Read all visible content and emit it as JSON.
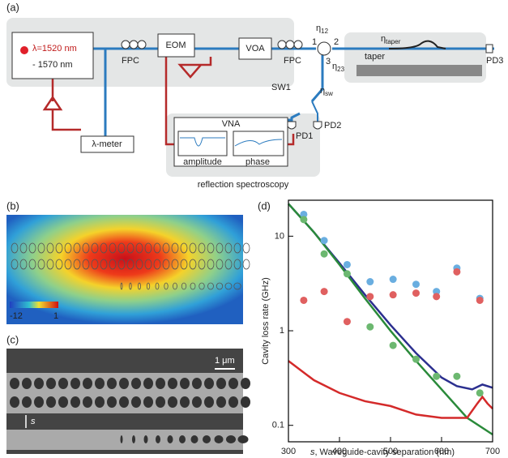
{
  "panels": {
    "a": {
      "label": "(a)",
      "laser": [
        "λ=1520 nm",
        "- 1570 nm"
      ],
      "fpc1": "FPC",
      "eom": "EOM",
      "voa": "VOA",
      "fpc2": "FPC",
      "ports": [
        "1",
        "2",
        "3"
      ],
      "eta12": {
        "symbol": "η",
        "sub": "12"
      },
      "eta23": {
        "symbol": "η",
        "sub": "23"
      },
      "eta_taper": {
        "symbol": "η",
        "sub": "taper"
      },
      "taper": "taper",
      "pd3": "PD3",
      "sw1": "SW1",
      "eta_sw": {
        "symbol": "η",
        "sub": "sw"
      },
      "pd1": "PD1",
      "pd2": "PD2",
      "lambda_meter": "λ-meter",
      "vna": "VNA",
      "amplitude": "amplitude",
      "phase": "phase",
      "caption": "reflection spectroscopy"
    },
    "b": {
      "label": "(b)",
      "colorbar": [
        "-12",
        "1"
      ]
    },
    "c": {
      "label": "(c)",
      "scale_bar": "1 μm",
      "s": "s"
    },
    "d": {
      "label": "(d)"
    }
  },
  "chart_data": {
    "type": "scatter",
    "ylabel": "Cavity loss rate (GHz)",
    "xlabel": {
      "var": "s",
      "text": ", Waveguide-cavity separation (nm)"
    },
    "xlim": [
      300,
      700
    ],
    "xticks": [
      300,
      400,
      500,
      600,
      700
    ],
    "ylim": [
      0.067,
      24
    ],
    "yticks": [
      0.1,
      1,
      10
    ],
    "log_y": true,
    "series": [
      {
        "type": "line",
        "color": "#2b2f8f",
        "x": [
          300,
          350,
          400,
          450,
          500,
          550,
          600,
          630,
          660,
          680,
          700
        ],
        "values": [
          22,
          11,
          5.2,
          2.4,
          1.15,
          0.58,
          0.32,
          0.26,
          0.24,
          0.27,
          0.25
        ]
      },
      {
        "type": "line",
        "color": "#2a8a3a",
        "x": [
          300,
          350,
          400,
          450,
          500,
          550,
          600,
          650,
          700
        ],
        "values": [
          22,
          11,
          5,
          2.2,
          1,
          0.48,
          0.24,
          0.12,
          0.08
        ]
      },
      {
        "type": "line",
        "color": "#d42a2a",
        "x": [
          300,
          350,
          400,
          450,
          500,
          550,
          600,
          650,
          670,
          680,
          690,
          700
        ],
        "values": [
          0.48,
          0.3,
          0.22,
          0.18,
          0.16,
          0.13,
          0.12,
          0.12,
          0.17,
          0.2,
          0.17,
          0.15
        ]
      },
      {
        "type": "scatter",
        "color": "#6aaee0",
        "x": [
          330,
          370,
          415,
          460,
          505,
          550,
          590,
          630,
          675
        ],
        "values": [
          17,
          9,
          5,
          3.3,
          3.5,
          3.1,
          2.6,
          4.6,
          2.2
        ]
      },
      {
        "type": "scatter",
        "color": "#e06060",
        "x": [
          330,
          370,
          415,
          460,
          505,
          550,
          590,
          630,
          675
        ],
        "values": [
          2.1,
          2.6,
          1.25,
          2.3,
          2.4,
          2.5,
          2.3,
          4.2,
          2.1
        ]
      },
      {
        "type": "scatter",
        "color": "#6cb870",
        "x": [
          330,
          370,
          415,
          460,
          505,
          550,
          590,
          630,
          675
        ],
        "values": [
          15,
          6.5,
          4,
          1.1,
          0.7,
          0.5,
          0.33,
          0.33,
          0.22
        ]
      }
    ]
  }
}
